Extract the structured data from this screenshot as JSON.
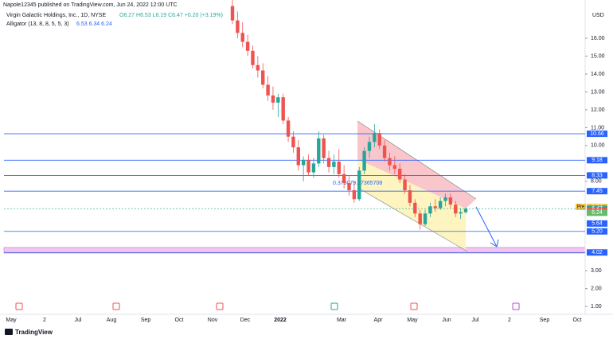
{
  "header": {
    "byline": "Napole12345 published on TradingView.com, Jun 24, 2022 12:00 UTC",
    "symbol": "Virgin Galactic Holdings, Inc., 1D, NYSE",
    "ohlc": "O6.27 H6.53 L6.19 C6.47 +0.20 (+3.19%)",
    "indicator": "Alligator (13, 8, 8, 5, 5, 3)",
    "indicator_values": "6.53 6.34 6.24"
  },
  "currency": "USD",
  "annotation": "0.376079.57365708",
  "brand": "TradingView",
  "pre_label": "Pre",
  "chart_data": {
    "type": "candlestick",
    "up_color": "#26a69a",
    "down_color": "#ef5350",
    "open": [
      17.8,
      17.0,
      16.3,
      15.8,
      15.3,
      14.5,
      14.2,
      13.4,
      12.8,
      12.4,
      12.7,
      11.4,
      10.5,
      9.9,
      8.9,
      9.2,
      8.5,
      9.0,
      10.4,
      9.3,
      8.8,
      9.1,
      8.4,
      7.9,
      7.5,
      7.0,
      8.6,
      9.7,
      10.2,
      10.7,
      10.0,
      9.3,
      8.9,
      8.7,
      8.1,
      7.5,
      6.8,
      6.2,
      5.6,
      6.2,
      6.6,
      6.5,
      6.9,
      7.1,
      6.7,
      6.2,
      6.27
    ],
    "high": [
      18.2,
      17.5,
      16.9,
      16.2,
      15.6,
      15.0,
      14.6,
      13.9,
      13.3,
      12.9,
      12.9,
      11.6,
      10.8,
      10.3,
      9.4,
      9.5,
      9.3,
      10.8,
      10.6,
      9.7,
      9.5,
      9.8,
      8.9,
      8.3,
      8.0,
      8.8,
      9.9,
      10.5,
      11.2,
      10.9,
      10.3,
      9.6,
      9.4,
      9.0,
      8.4,
      7.8,
      7.0,
      6.4,
      6.4,
      6.8,
      7.0,
      7.1,
      7.3,
      7.3,
      6.9,
      6.5,
      6.53
    ],
    "low": [
      16.8,
      16.0,
      15.5,
      15.0,
      14.3,
      13.8,
      13.2,
      12.5,
      12.0,
      11.6,
      11.2,
      10.2,
      9.6,
      8.6,
      8.0,
      8.3,
      8.2,
      8.8,
      9.0,
      8.5,
      8.4,
      8.2,
      7.6,
      7.2,
      6.8,
      6.9,
      8.4,
      9.3,
      9.9,
      9.8,
      9.1,
      8.6,
      8.4,
      7.9,
      7.3,
      6.6,
      6.0,
      5.3,
      5.5,
      6.0,
      6.3,
      6.4,
      6.6,
      6.5,
      6.0,
      5.9,
      6.19
    ],
    "close": [
      17.0,
      16.3,
      15.8,
      15.3,
      14.5,
      14.2,
      13.4,
      12.8,
      12.4,
      12.7,
      11.4,
      10.5,
      9.9,
      8.9,
      9.2,
      8.5,
      9.0,
      10.4,
      9.3,
      8.8,
      9.1,
      8.4,
      7.9,
      7.5,
      7.0,
      8.6,
      9.7,
      10.2,
      10.7,
      10.0,
      9.3,
      8.9,
      8.7,
      8.1,
      7.5,
      6.8,
      6.2,
      5.6,
      6.2,
      6.6,
      6.5,
      6.9,
      7.1,
      6.7,
      6.2,
      6.27,
      6.47
    ],
    "time_labels": [
      "May",
      "2",
      "Jul",
      "Aug",
      "Sep",
      "Oct",
      "Nov",
      "Dec",
      "2022",
      "Mar",
      "Apr",
      "May",
      "Jun",
      "Jul",
      "2",
      "Sep",
      "Oct"
    ],
    "ylim": [
      0.56,
      18.14
    ],
    "yticks": [
      {
        "value": 1,
        "label": "1.00"
      },
      {
        "value": 2,
        "label": "2.00"
      },
      {
        "value": 3,
        "label": "3.00"
      },
      {
        "value": 8,
        "label": "8.00"
      },
      {
        "value": 10,
        "label": "10.00"
      },
      {
        "value": 11,
        "label": "11.00"
      },
      {
        "value": 12,
        "label": "12.00"
      },
      {
        "value": 13,
        "label": "13.00"
      },
      {
        "value": 14,
        "label": "14.00"
      },
      {
        "value": 15,
        "label": "15.00"
      },
      {
        "value": 16,
        "label": "16.00"
      }
    ],
    "price_labels": [
      {
        "value": 10.66,
        "color": "#2962ff",
        "line": true
      },
      {
        "value": 9.18,
        "color": "#2962ff",
        "line": true
      },
      {
        "value": 8.33,
        "color": "#2962ff",
        "line": true
      },
      {
        "value": 7.45,
        "color": "#2962ff",
        "line": true
      },
      {
        "value": 6.53,
        "color": "#2962ff",
        "line": false
      },
      {
        "value": 6.57,
        "color": "#f5c542",
        "line": false
      },
      {
        "value": 6.47,
        "color": "#26a69a",
        "line": false
      },
      {
        "value": 6.34,
        "color": "#ef5350",
        "line": false
      },
      {
        "value": 6.24,
        "color": "#66bb6a",
        "line": false
      },
      {
        "value": 5.64,
        "color": "#2962ff",
        "line": false
      },
      {
        "value": 5.2,
        "label": "5.20",
        "color": "#2962ff",
        "line": true
      },
      {
        "value": 4.02,
        "color": "#2962ff",
        "line": true
      }
    ]
  }
}
